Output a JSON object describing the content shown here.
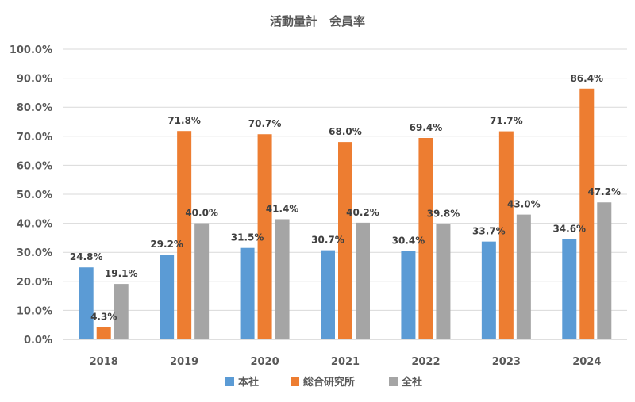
{
  "chart_data": {
    "type": "bar",
    "title": "活動量計　会員率",
    "categories": [
      "2018",
      "2019",
      "2020",
      "2021",
      "2022",
      "2023",
      "2024"
    ],
    "series": [
      {
        "name": "本社",
        "color": "#5b9bd5",
        "values": [
          24.8,
          29.2,
          31.5,
          30.7,
          30.4,
          33.7,
          34.6
        ]
      },
      {
        "name": "総合研究所",
        "color": "#ed7d31",
        "values": [
          4.3,
          71.8,
          70.7,
          68.0,
          69.4,
          71.7,
          86.4
        ]
      },
      {
        "name": "全社",
        "color": "#a5a5a5",
        "values": [
          19.1,
          40.0,
          41.4,
          40.2,
          39.8,
          43.0,
          47.2
        ]
      }
    ],
    "ylim": [
      0,
      100
    ],
    "yticks": [
      "0.0%",
      "10.0%",
      "20.0%",
      "30.0%",
      "40.0%",
      "50.0%",
      "60.0%",
      "70.0%",
      "80.0%",
      "90.0%",
      "100.0%"
    ],
    "data_labels": [
      [
        "24.8%",
        "29.2%",
        "31.5%",
        "30.7%",
        "30.4%",
        "33.7%",
        "34.6%"
      ],
      [
        "4.3%",
        "71.8%",
        "70.7%",
        "68.0%",
        "69.4%",
        "71.7%",
        "86.4%"
      ],
      [
        "19.1%",
        "40.0%",
        "41.4%",
        "40.2%",
        "39.8%",
        "43.0%",
        "47.2%"
      ]
    ],
    "grid": true,
    "legend": "bottom"
  }
}
